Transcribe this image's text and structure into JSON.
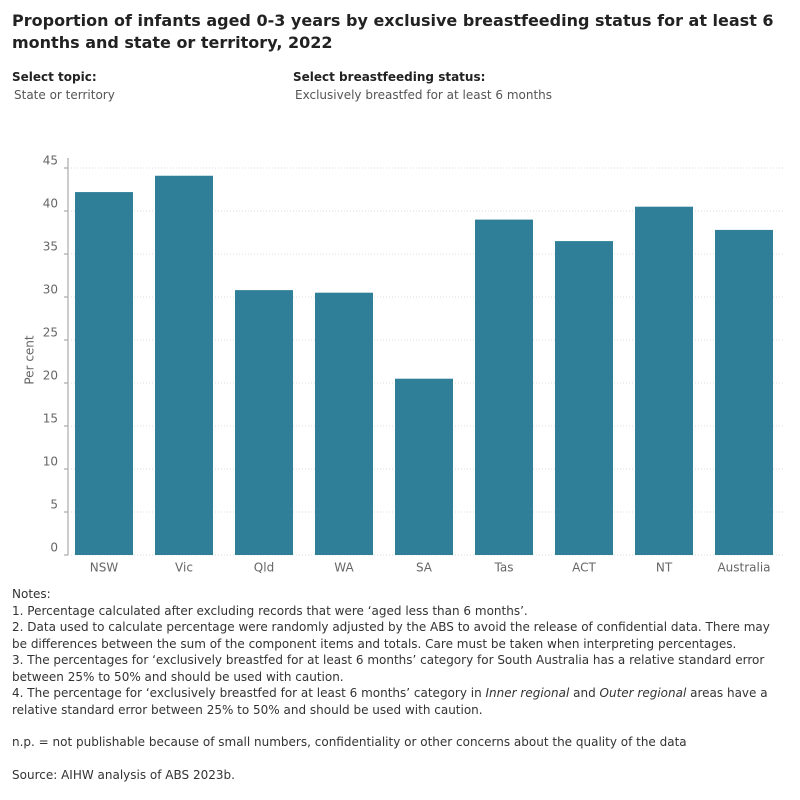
{
  "header": {
    "title": "Proportion of infants aged 0-3 years by exclusive breastfeeding status for at least 6 months and state or territory, 2022"
  },
  "filters": [
    {
      "label": "Select topic:",
      "value": "State or territory"
    },
    {
      "label": "Select breastfeeding status:",
      "value": "Exclusively breastfed for at least 6 months"
    }
  ],
  "chart_data": {
    "type": "bar",
    "y_label": "Per cent",
    "categories": [
      "NSW",
      "Vic",
      "Qld",
      "WA",
      "SA",
      "Tas",
      "ACT",
      "NT",
      "Australia"
    ],
    "values": [
      42.2,
      44.1,
      30.8,
      30.5,
      20.5,
      39.0,
      36.5,
      40.5,
      37.8
    ],
    "color": "#2e7f97",
    "ylim": [
      0,
      45
    ],
    "yticks": [
      0,
      5,
      10,
      15,
      20,
      25,
      30,
      35,
      40,
      45
    ],
    "grid": true
  },
  "notes": {
    "heading": "Notes:",
    "items": [
      [
        "1. Percentage calculated after excluding records that were ‘aged less than 6 months’."
      ],
      [
        "2. Data used to calculate percentage were randomly adjusted by the ABS to avoid the release of confidential data. There may be differences between the sum of the component items and totals. Care must be taken when interpreting percentages."
      ],
      [
        "3. The percentages for ‘exclusively breastfed for at least 6 months’ category for South Australia has a relative standard error between 25% to 50% and should be used with caution."
      ],
      [
        "4. The percentage for ‘exclusively breastfed for at least 6 months’ category in ",
        "Inner regional",
        " and ",
        "Outer regional",
        " areas have a relative standard error between 25% to 50% and should be used with caution."
      ]
    ],
    "np": "n.p. = not publishable because of small numbers, confidentiality or other concerns about the quality of the data",
    "source": "Source: AIHW analysis of ABS 2023b."
  }
}
